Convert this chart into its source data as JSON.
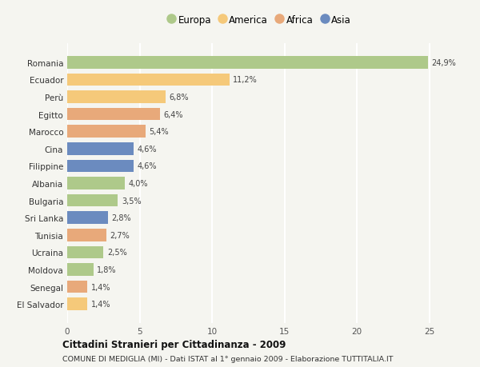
{
  "categories": [
    "Romania",
    "Ecuador",
    "Perù",
    "Egitto",
    "Marocco",
    "Cina",
    "Filippine",
    "Albania",
    "Bulgaria",
    "Sri Lanka",
    "Tunisia",
    "Ucraina",
    "Moldova",
    "Senegal",
    "El Salvador"
  ],
  "values": [
    24.9,
    11.2,
    6.8,
    6.4,
    5.4,
    4.6,
    4.6,
    4.0,
    3.5,
    2.8,
    2.7,
    2.5,
    1.8,
    1.4,
    1.4
  ],
  "colors": [
    "#aec98a",
    "#f5c97a",
    "#f5c97a",
    "#e8a97a",
    "#e8a97a",
    "#6b8bbf",
    "#6b8bbf",
    "#aec98a",
    "#aec98a",
    "#6b8bbf",
    "#e8a97a",
    "#aec98a",
    "#aec98a",
    "#e8a97a",
    "#f5c97a"
  ],
  "labels": [
    "24,9%",
    "11,2%",
    "6,8%",
    "6,4%",
    "5,4%",
    "4,6%",
    "4,6%",
    "4,0%",
    "3,5%",
    "2,8%",
    "2,7%",
    "2,5%",
    "1,8%",
    "1,4%",
    "1,4%"
  ],
  "legend": {
    "Europa": "#aec98a",
    "America": "#f5c97a",
    "Africa": "#e8a97a",
    "Asia": "#6b8bbf"
  },
  "xlim": [
    0,
    26.5
  ],
  "xticks": [
    0,
    5,
    10,
    15,
    20,
    25
  ],
  "title": "Cittadini Stranieri per Cittadinanza - 2009",
  "subtitle": "COMUNE DI MEDIGLIA (MI) - Dati ISTAT al 1° gennaio 2009 - Elaborazione TUTTITALIA.IT",
  "background_color": "#f5f5f0",
  "grid_color": "#ffffff",
  "bar_height": 0.72
}
